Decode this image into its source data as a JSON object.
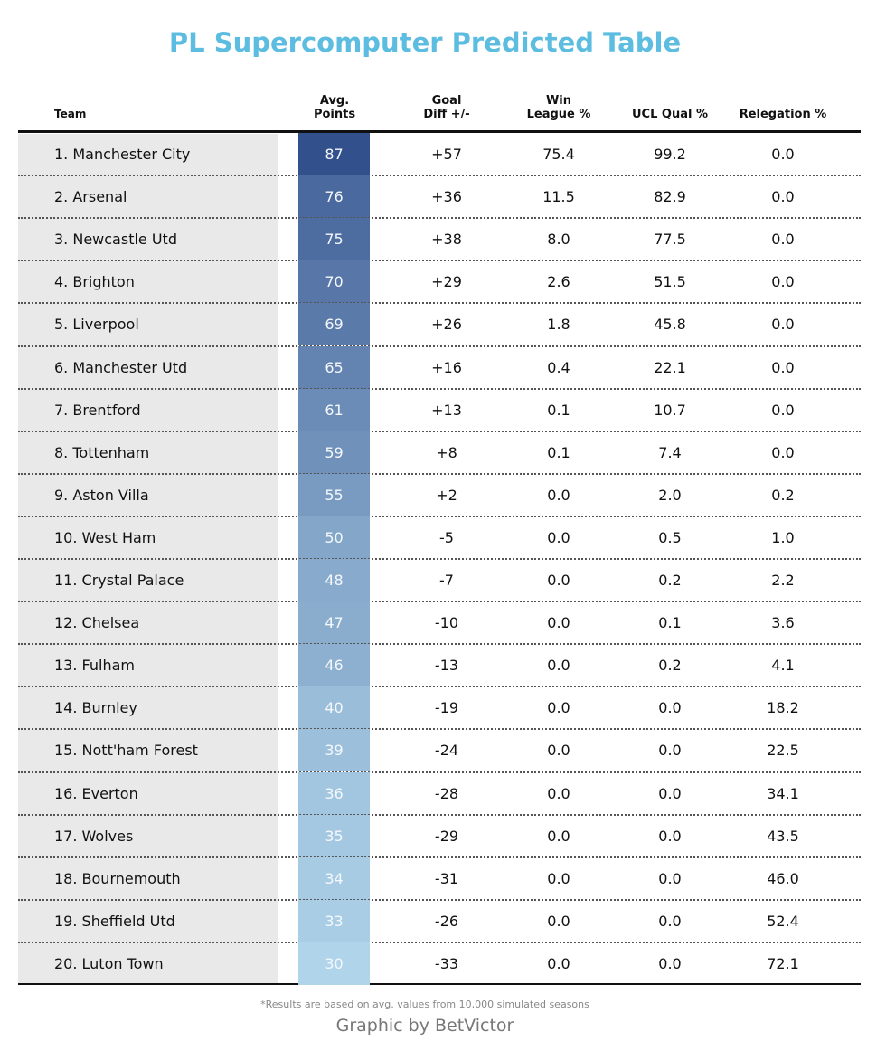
{
  "header": {
    "title": "PL Supercomputer Predicted Table"
  },
  "table": {
    "columns": [
      [
        "Team"
      ],
      [
        "Avg.",
        "Points"
      ],
      [
        "Goal",
        "Diff +/-"
      ],
      [
        "Win",
        "League %"
      ],
      [
        "UCL Qual %"
      ],
      [
        "Relegation %"
      ]
    ],
    "rows": [
      [
        "1. Manchester City",
        "87",
        "+57",
        "75.4",
        "99.2",
        "0.0"
      ],
      [
        "2. Arsenal",
        "76",
        "+36",
        "11.5",
        "82.9",
        "0.0"
      ],
      [
        "3. Newcastle Utd",
        "75",
        "+38",
        "8.0",
        "77.5",
        "0.0"
      ],
      [
        "4. Brighton",
        "70",
        "+29",
        "2.6",
        "51.5",
        "0.0"
      ],
      [
        "5. Liverpool",
        "69",
        "+26",
        "1.8",
        "45.8",
        "0.0"
      ],
      [
        "6. Manchester Utd",
        "65",
        "+16",
        "0.4",
        "22.1",
        "0.0"
      ],
      [
        "7. Brentford",
        "61",
        "+13",
        "0.1",
        "10.7",
        "0.0"
      ],
      [
        "8. Tottenham",
        "59",
        "+8",
        "0.1",
        "7.4",
        "0.0"
      ],
      [
        "9. Aston Villa",
        "55",
        "+2",
        "0.0",
        "2.0",
        "0.2"
      ],
      [
        "10. West Ham",
        "50",
        "-5",
        "0.0",
        "0.5",
        "1.0"
      ],
      [
        "11. Crystal Palace",
        "48",
        "-7",
        "0.0",
        "0.2",
        "2.2"
      ],
      [
        "12. Chelsea",
        "47",
        "-10",
        "0.0",
        "0.1",
        "3.6"
      ],
      [
        "13. Fulham",
        "46",
        "-13",
        "0.0",
        "0.2",
        "4.1"
      ],
      [
        "14. Burnley",
        "40",
        "-19",
        "0.0",
        "0.0",
        "18.2"
      ],
      [
        "15. Nott'ham Forest",
        "39",
        "-24",
        "0.0",
        "0.0",
        "22.5"
      ],
      [
        "16. Everton",
        "36",
        "-28",
        "0.0",
        "0.0",
        "34.1"
      ],
      [
        "17. Wolves",
        "35",
        "-29",
        "0.0",
        "0.0",
        "43.5"
      ],
      [
        "18. Bournemouth",
        "34",
        "-31",
        "0.0",
        "0.0",
        "46.0"
      ],
      [
        "19. Sheffield Utd",
        "33",
        "-26",
        "0.0",
        "0.0",
        "52.4"
      ],
      [
        "20. Luton Town",
        "30",
        "-33",
        "0.0",
        "0.0",
        "72.1"
      ]
    ]
  },
  "footer": {
    "note": "*Results are based on avg. values from 10,000 simulated seasons",
    "credit": "Graphic by BetVictor"
  }
}
